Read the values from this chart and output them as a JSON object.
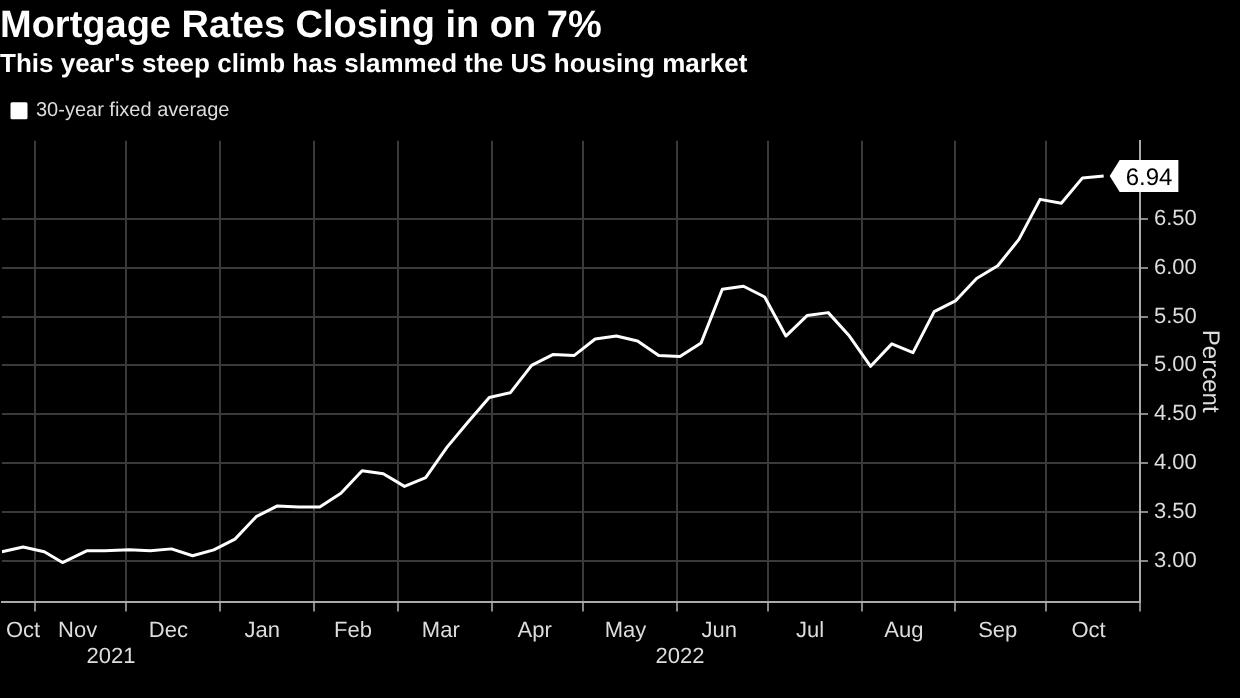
{
  "chart_data": {
    "type": "line",
    "title": "Mortgage Rates Closing in on 7%",
    "subtitle": "This year's steep climb has slammed the US housing market",
    "ylabel": "Percent",
    "x": [
      "2021-10-21",
      "2021-10-28",
      "2021-11-04",
      "2021-11-10",
      "2021-11-18",
      "2021-11-24",
      "2021-12-02",
      "2021-12-09",
      "2021-12-16",
      "2021-12-23",
      "2021-12-30",
      "2022-01-06",
      "2022-01-13",
      "2022-01-20",
      "2022-01-27",
      "2022-02-03",
      "2022-02-10",
      "2022-02-17",
      "2022-02-24",
      "2022-03-03",
      "2022-03-10",
      "2022-03-17",
      "2022-03-24",
      "2022-03-31",
      "2022-04-07",
      "2022-04-14",
      "2022-04-21",
      "2022-04-28",
      "2022-05-05",
      "2022-05-12",
      "2022-05-19",
      "2022-05-26",
      "2022-06-02",
      "2022-06-09",
      "2022-06-16",
      "2022-06-23",
      "2022-06-30",
      "2022-07-07",
      "2022-07-14",
      "2022-07-21",
      "2022-07-28",
      "2022-08-04",
      "2022-08-11",
      "2022-08-18",
      "2022-08-25",
      "2022-09-01",
      "2022-09-08",
      "2022-09-15",
      "2022-09-22",
      "2022-09-29",
      "2022-10-06",
      "2022-10-13",
      "2022-10-20"
    ],
    "series": [
      {
        "name": "30-year fixed average",
        "color": "#ffffff",
        "values": [
          3.09,
          3.14,
          3.09,
          2.98,
          3.1,
          3.1,
          3.11,
          3.1,
          3.12,
          3.05,
          3.11,
          3.22,
          3.45,
          3.56,
          3.55,
          3.55,
          3.69,
          3.92,
          3.89,
          3.76,
          3.85,
          4.16,
          4.42,
          4.67,
          4.72,
          5.0,
          5.11,
          5.1,
          5.27,
          5.3,
          5.25,
          5.1,
          5.09,
          5.23,
          5.78,
          5.81,
          5.7,
          5.3,
          5.51,
          5.54,
          5.3,
          4.99,
          5.22,
          5.13,
          5.55,
          5.66,
          5.89,
          6.02,
          6.29,
          6.7,
          6.66,
          6.92,
          6.94
        ],
        "value_labels": [
          null,
          null,
          null,
          null,
          null,
          null,
          null,
          null,
          null,
          null,
          null,
          null,
          null,
          null,
          null,
          null,
          null,
          null,
          null,
          null,
          null,
          null,
          null,
          null,
          null,
          null,
          null,
          null,
          null,
          null,
          null,
          null,
          null,
          null,
          null,
          null,
          null,
          null,
          null,
          null,
          null,
          null,
          null,
          null,
          null,
          null,
          null,
          null,
          null,
          null,
          null,
          null,
          "6.94"
        ]
      }
    ],
    "xlim": [
      "2021-10-21",
      "2022-11-01"
    ],
    "xticks": [
      {
        "value": "2021-10-28",
        "label": "Oct"
      },
      {
        "value": "2021-11-01",
        "label": null
      },
      {
        "value": "2021-11-15",
        "label": "Nov"
      },
      {
        "value": "2021-12-01",
        "label": null
      },
      {
        "value": "2021-12-15",
        "label": "Dec"
      },
      {
        "value": "2022-01-01",
        "label": null
      },
      {
        "value": "2022-01-15",
        "label": "Jan"
      },
      {
        "value": "2022-02-01",
        "label": null
      },
      {
        "value": "2022-02-14",
        "label": "Feb"
      },
      {
        "value": "2022-03-01",
        "label": null
      },
      {
        "value": "2022-03-15",
        "label": "Mar"
      },
      {
        "value": "2022-04-01",
        "label": null
      },
      {
        "value": "2022-04-15",
        "label": "Apr"
      },
      {
        "value": "2022-05-01",
        "label": null
      },
      {
        "value": "2022-05-15",
        "label": "May"
      },
      {
        "value": "2022-06-01",
        "label": null
      },
      {
        "value": "2022-06-15",
        "label": "Jun"
      },
      {
        "value": "2022-07-01",
        "label": null
      },
      {
        "value": "2022-07-15",
        "label": "Jul"
      },
      {
        "value": "2022-08-01",
        "label": null
      },
      {
        "value": "2022-08-15",
        "label": "Aug"
      },
      {
        "value": "2022-09-01",
        "label": null
      },
      {
        "value": "2022-09-15",
        "label": "Sep"
      },
      {
        "value": "2022-10-01",
        "label": null
      },
      {
        "value": "2022-10-15",
        "label": "Oct"
      },
      {
        "value": "2022-11-01",
        "label": null
      }
    ],
    "ylim": [
      2.58,
      7.3
    ],
    "yticks": [
      {
        "value": 3,
        "label": "3.00"
      },
      {
        "value": 3.5,
        "label": "3.50"
      },
      {
        "value": 4,
        "label": "4.00"
      },
      {
        "value": 4.5,
        "label": "4.50"
      },
      {
        "value": 5,
        "label": "5.00"
      },
      {
        "value": 5.5,
        "label": "5.50"
      },
      {
        "value": 6,
        "label": "6.00"
      },
      {
        "value": 6.5,
        "label": "6.50"
      }
    ],
    "annotations": [
      "2021",
      "2022"
    ],
    "grid": true,
    "legend": "top left",
    "marker": "none",
    "line_style": "solid"
  }
}
